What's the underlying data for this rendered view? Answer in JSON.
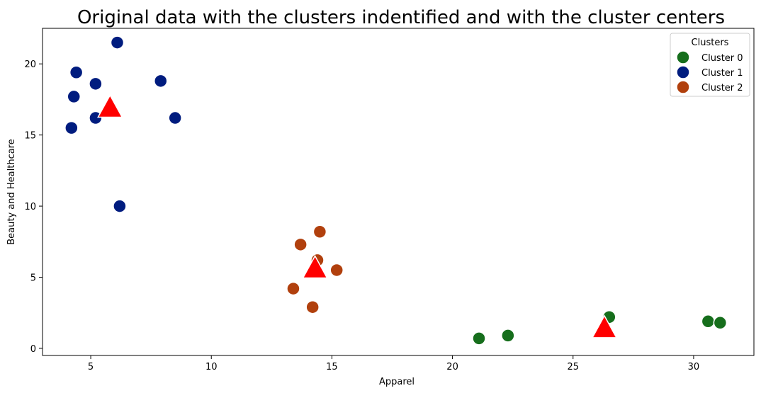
{
  "chart_data": {
    "type": "scatter",
    "title": "Original data with the clusters indentified and with the cluster centers",
    "xlabel": "Apparel",
    "ylabel": "Beauty and Healthcare",
    "xlim": [
      3,
      32.5
    ],
    "ylim": [
      -0.5,
      22.5
    ],
    "xticks": [
      5,
      10,
      15,
      20,
      25,
      30
    ],
    "yticks": [
      0,
      5,
      10,
      15,
      20
    ],
    "grid": false,
    "legend": {
      "title": "Clusters",
      "placement": "top-right"
    },
    "series": [
      {
        "name": "Cluster 0",
        "color": "#166e1c",
        "points": [
          {
            "x": 21.1,
            "y": 0.7
          },
          {
            "x": 22.3,
            "y": 0.9
          },
          {
            "x": 26.5,
            "y": 2.2
          },
          {
            "x": 30.6,
            "y": 1.9
          },
          {
            "x": 31.1,
            "y": 1.8
          }
        ]
      },
      {
        "name": "Cluster 1",
        "color": "#001c7f",
        "points": [
          {
            "x": 6.1,
            "y": 21.5
          },
          {
            "x": 4.4,
            "y": 19.4
          },
          {
            "x": 4.3,
            "y": 17.7
          },
          {
            "x": 5.2,
            "y": 18.6
          },
          {
            "x": 7.9,
            "y": 18.8
          },
          {
            "x": 5.2,
            "y": 16.2
          },
          {
            "x": 8.5,
            "y": 16.2
          },
          {
            "x": 4.2,
            "y": 15.5
          },
          {
            "x": 6.2,
            "y": 10.0
          }
        ]
      },
      {
        "name": "Cluster 2",
        "color": "#b1400d",
        "points": [
          {
            "x": 14.5,
            "y": 8.2
          },
          {
            "x": 13.7,
            "y": 7.3
          },
          {
            "x": 14.4,
            "y": 6.2
          },
          {
            "x": 15.2,
            "y": 5.5
          },
          {
            "x": 13.4,
            "y": 4.2
          },
          {
            "x": 14.2,
            "y": 2.9
          }
        ]
      }
    ],
    "centers": {
      "color": "#ff0000",
      "points": [
        {
          "x": 5.8,
          "y": 16.9
        },
        {
          "x": 14.3,
          "y": 5.6
        },
        {
          "x": 26.3,
          "y": 1.4
        }
      ]
    }
  }
}
